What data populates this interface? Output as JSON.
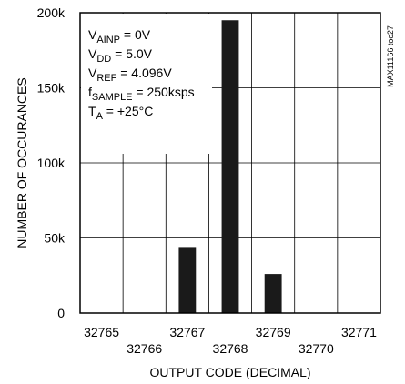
{
  "chart_data": {
    "type": "bar",
    "categories": [
      "32765",
      "32766",
      "32767",
      "32768",
      "32769",
      "32770",
      "32771"
    ],
    "values": [
      0,
      0,
      44000,
      195000,
      26000,
      0,
      0
    ],
    "xlabel": "OUTPUT CODE (DECIMAL)",
    "ylabel": "NUMBER OF OCCURANCES",
    "ylim": [
      0,
      200000
    ],
    "yticks": [
      0,
      50000,
      100000,
      150000,
      200000
    ],
    "ytick_labels": [
      "0",
      "50k",
      "100k",
      "150k",
      "200k"
    ],
    "grid": true,
    "bar_color": "#1a1a1a",
    "conditions": [
      {
        "main": "V",
        "sub": "AINP",
        "rest": " = 0V"
      },
      {
        "main": "V",
        "sub": "DD",
        "rest": " = 5.0V"
      },
      {
        "main": "V",
        "sub": "REF",
        "rest": " = 4.096V"
      },
      {
        "main": "f",
        "sub": "SAMPLE",
        "rest": " = 250ksps"
      },
      {
        "main": "T",
        "sub": "A",
        "rest": " = +25°C"
      }
    ],
    "figure_code": "MAX11166 toc27"
  }
}
